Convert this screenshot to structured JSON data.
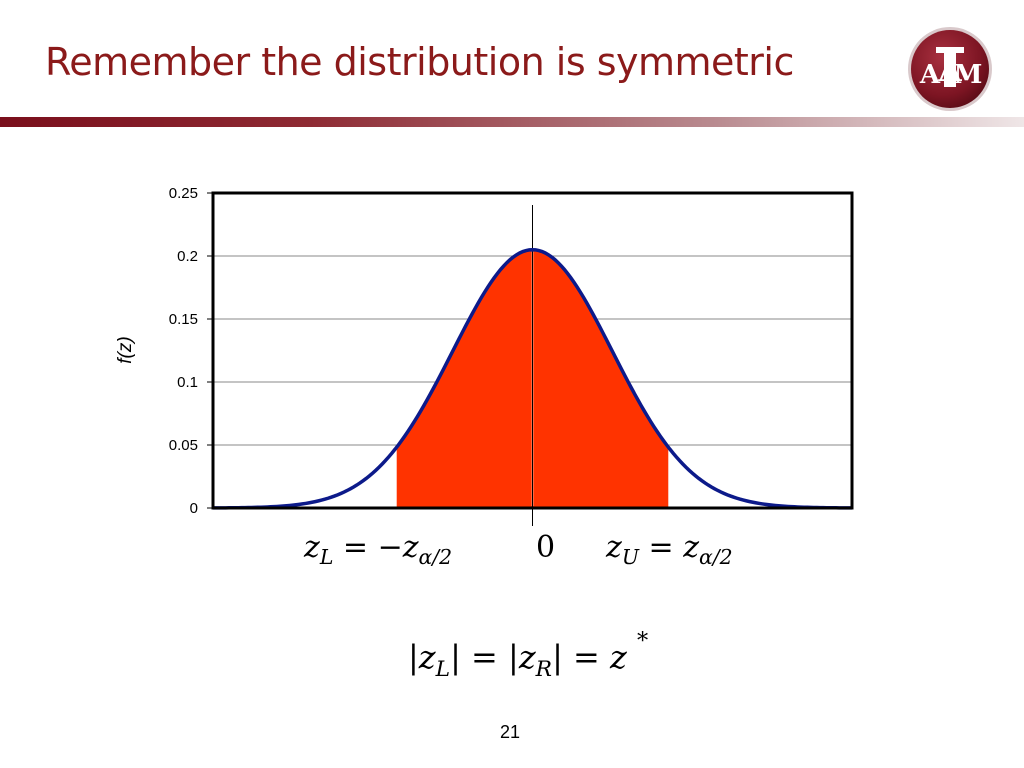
{
  "slide": {
    "title": "Remember the distribution is symmetric",
    "page_number": "21",
    "logo_text": "ATM"
  },
  "colors": {
    "title": "#8b1a1a",
    "curve": "#0c1a8a",
    "shade": "#ff3300",
    "logo": "#7d1523"
  },
  "chart_data": {
    "type": "area",
    "ylabel": "f(z)",
    "xlabel": "",
    "y_ticks": [
      "0",
      "0.05",
      "0.1",
      "0.15",
      "0.2",
      "0.25"
    ],
    "ylim": [
      0,
      0.25
    ],
    "xlim": [
      -4,
      4
    ],
    "grid": true,
    "peak_value": 0.205,
    "shaded_interval": [
      -1.7,
      1.7
    ],
    "x_labels": {
      "left": "z_L = -z_{α/2}",
      "center": "0",
      "right": "z_U = z_{α/2}"
    }
  },
  "equation": {
    "text": "|z_L| = |z_R| = z*"
  }
}
